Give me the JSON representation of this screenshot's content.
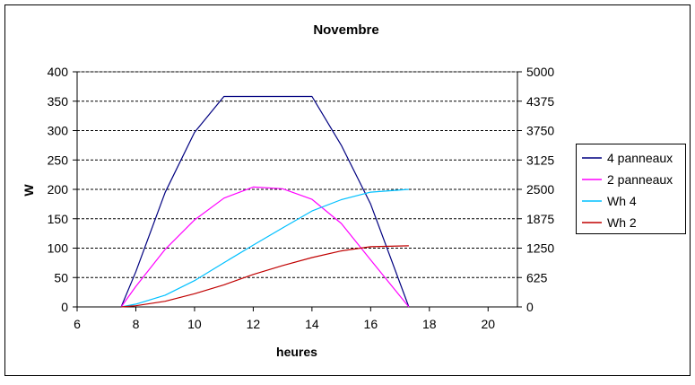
{
  "chart_data": {
    "type": "line",
    "title": "Novembre",
    "xlabel": "heures",
    "ylabel": "W",
    "y2label": "",
    "xlim": [
      6,
      21
    ],
    "ylim": [
      0,
      400
    ],
    "y2lim": [
      0,
      5000
    ],
    "x_ticks": [
      "6",
      "8",
      "10",
      "12",
      "14",
      "16",
      "18",
      "20"
    ],
    "y_ticks": [
      "0",
      "50",
      "100",
      "150",
      "200",
      "250",
      "300",
      "350",
      "400"
    ],
    "y2_ticks": [
      "0",
      "625",
      "1250",
      "1875",
      "2500",
      "3125",
      "3750",
      "4375",
      "5000"
    ],
    "grid": "horizontal-dashed",
    "legend_position": "right",
    "series": [
      {
        "name": "4 panneaux",
        "axis": "left",
        "color": "#000080",
        "points": [
          [
            7.5,
            0
          ],
          [
            8,
            60
          ],
          [
            9,
            195
          ],
          [
            10,
            297
          ],
          [
            11,
            358
          ],
          [
            12,
            358
          ],
          [
            13,
            358
          ],
          [
            14,
            358
          ],
          [
            15,
            275
          ],
          [
            16,
            175
          ],
          [
            17.3,
            0
          ]
        ]
      },
      {
        "name": "2 panneaux",
        "axis": "left",
        "color": "#ff00ff",
        "points": [
          [
            7.5,
            0
          ],
          [
            8,
            35
          ],
          [
            9,
            98
          ],
          [
            10,
            148
          ],
          [
            11,
            185
          ],
          [
            12,
            204
          ],
          [
            13,
            201
          ],
          [
            14,
            183
          ],
          [
            15,
            142
          ],
          [
            16,
            80
          ],
          [
            17.3,
            0
          ]
        ]
      },
      {
        "name": "Wh 4",
        "axis": "right",
        "color": "#00c0ff",
        "points": [
          [
            7.5,
            0
          ],
          [
            8,
            60
          ],
          [
            9,
            250
          ],
          [
            10,
            560
          ],
          [
            11,
            940
          ],
          [
            12,
            1315
          ],
          [
            13,
            1680
          ],
          [
            14,
            2040
          ],
          [
            15,
            2280
          ],
          [
            16,
            2440
          ],
          [
            17.3,
            2500
          ]
        ]
      },
      {
        "name": "Wh 2",
        "axis": "right",
        "color": "#c00000",
        "points": [
          [
            7.5,
            0
          ],
          [
            8,
            25
          ],
          [
            9,
            120
          ],
          [
            10,
            280
          ],
          [
            11,
            470
          ],
          [
            12,
            690
          ],
          [
            13,
            880
          ],
          [
            14,
            1050
          ],
          [
            15,
            1190
          ],
          [
            16,
            1280
          ],
          [
            17.3,
            1300
          ]
        ]
      }
    ]
  }
}
